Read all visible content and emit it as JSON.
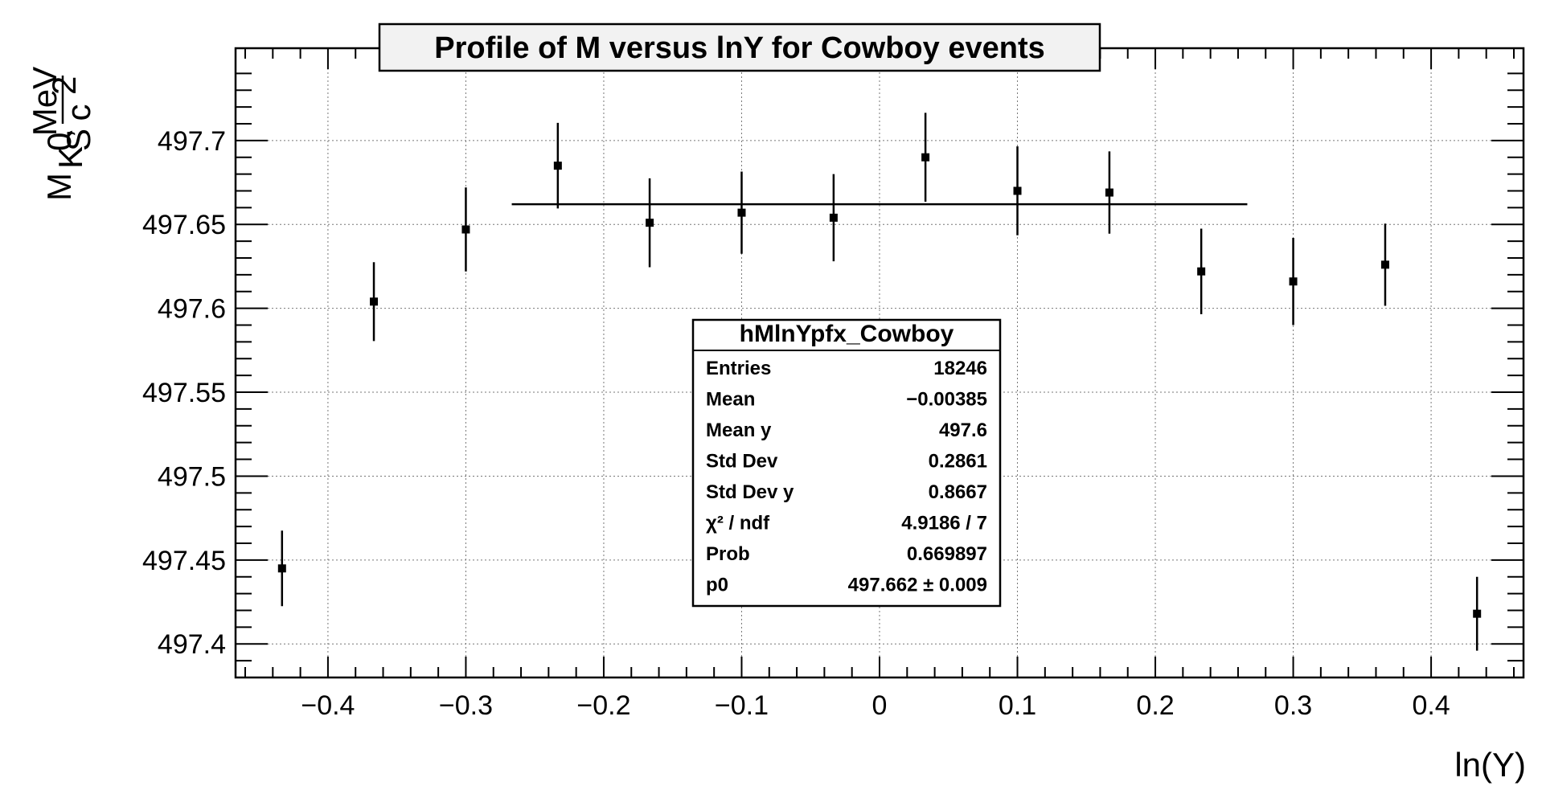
{
  "chart_data": {
    "type": "scatter",
    "title": "Profile of M versus lnY for Cowboy events",
    "xlabel": "ln(Y)",
    "ylabel": {
      "main": "M",
      "sub": "K",
      "sub_sup": "0",
      "sub_sub": "S",
      "sep": ",",
      "unit_num": "MeV",
      "unit_den": "c",
      "unit_den_sup": "2"
    },
    "xlim": [
      -0.467,
      0.467
    ],
    "ylim": [
      497.38,
      497.755
    ],
    "xticks": [
      -0.4,
      -0.3,
      -0.2,
      -0.1,
      0,
      0.1,
      0.2,
      0.3,
      0.4
    ],
    "xtick_labels": [
      "−0.4",
      "−0.3",
      "−0.2",
      "−0.1",
      "0",
      "0.1",
      "0.2",
      "0.3",
      "0.4"
    ],
    "yticks": [
      497.4,
      497.45,
      497.5,
      497.55,
      497.6,
      497.65,
      497.7
    ],
    "ytick_labels": [
      "497.4",
      "497.45",
      "497.5",
      "497.55",
      "497.6",
      "497.65",
      "497.7"
    ],
    "grid": true,
    "points": [
      {
        "x": -0.4333,
        "y": 497.445,
        "err": 0.0225
      },
      {
        "x": -0.3667,
        "y": 497.604,
        "err": 0.0235
      },
      {
        "x": -0.3,
        "y": 497.647,
        "err": 0.025
      },
      {
        "x": -0.2333,
        "y": 497.685,
        "err": 0.0255
      },
      {
        "x": -0.1667,
        "y": 497.651,
        "err": 0.0265
      },
      {
        "x": -0.1,
        "y": 497.657,
        "err": 0.0245
      },
      {
        "x": -0.0333,
        "y": 497.654,
        "err": 0.026
      },
      {
        "x": 0.0333,
        "y": 497.69,
        "err": 0.0265
      },
      {
        "x": 0.1,
        "y": 497.67,
        "err": 0.0265
      },
      {
        "x": 0.1667,
        "y": 497.669,
        "err": 0.0245
      },
      {
        "x": 0.2333,
        "y": 497.622,
        "err": 0.0255
      },
      {
        "x": 0.3,
        "y": 497.616,
        "err": 0.026
      },
      {
        "x": 0.3667,
        "y": 497.626,
        "err": 0.0245
      },
      {
        "x": 0.4333,
        "y": 497.418,
        "err": 0.022
      }
    ],
    "fit": {
      "x_from": -0.2667,
      "x_to": 0.2667,
      "value": 497.662
    }
  },
  "stats": {
    "title": "hMlnYpfx_Cowboy",
    "rows": [
      {
        "label": "Entries",
        "value": "18246"
      },
      {
        "label": "Mean",
        "value": "−0.00385"
      },
      {
        "label": "Mean y",
        "value": "497.6"
      },
      {
        "label": "Std Dev",
        "value": "0.2861"
      },
      {
        "label": "Std Dev y",
        "value": "0.8667"
      },
      {
        "label": "χ² / ndf",
        "value": "4.9186 / 7"
      },
      {
        "label": "Prob",
        "value": "0.669897"
      },
      {
        "label": "p0",
        "value": "497.662 ± 0.009"
      }
    ]
  }
}
